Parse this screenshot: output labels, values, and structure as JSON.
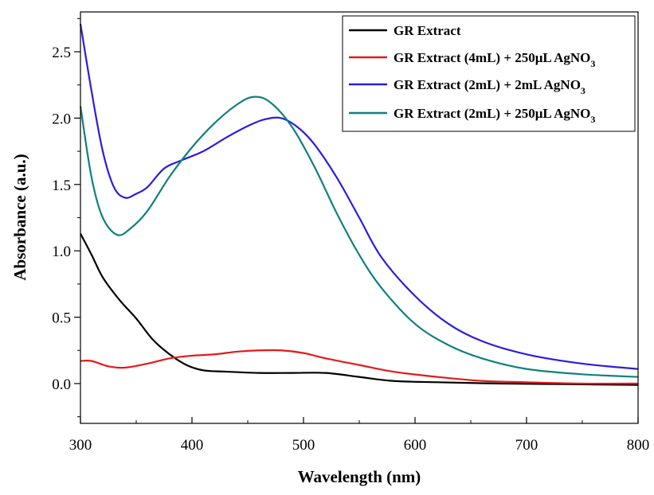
{
  "chart_data": {
    "type": "line",
    "xlabel": "Wavelength (nm)",
    "ylabel": "Absorbance (a.u.)",
    "xlim": [
      300,
      800
    ],
    "ylim": [
      -0.3,
      2.8
    ],
    "xticks": [
      300,
      400,
      500,
      600,
      700,
      800
    ],
    "xtick_labels": [
      "300",
      "400",
      "500",
      "600",
      "700",
      "800"
    ],
    "yticks": [
      0.0,
      0.5,
      1.0,
      1.5,
      2.0,
      2.5
    ],
    "ytick_labels": [
      "0.0",
      "0.5",
      "1.0",
      "1.5",
      "2.0",
      "2.5"
    ],
    "grid": false,
    "legend_position": "top-right",
    "series": [
      {
        "name": "GR Extract",
        "color": "#000000",
        "legend_main": "GR Extract",
        "legend_sub": "",
        "points": [
          [
            300,
            1.13
          ],
          [
            310,
            0.97
          ],
          [
            320,
            0.8
          ],
          [
            335,
            0.63
          ],
          [
            350,
            0.49
          ],
          [
            365,
            0.33
          ],
          [
            380,
            0.22
          ],
          [
            395,
            0.14
          ],
          [
            410,
            0.1
          ],
          [
            430,
            0.09
          ],
          [
            460,
            0.08
          ],
          [
            490,
            0.08
          ],
          [
            520,
            0.08
          ],
          [
            550,
            0.05
          ],
          [
            580,
            0.02
          ],
          [
            620,
            0.01
          ],
          [
            680,
            0.0
          ],
          [
            740,
            -0.005
          ],
          [
            800,
            -0.01
          ]
        ]
      },
      {
        "name": "GR Extract (4mL) + 250μL AgNO3",
        "color": "#e31a1c",
        "legend_main": "GR Extract (4mL) + 250μL AgNO",
        "legend_sub": "3",
        "points": [
          [
            300,
            0.17
          ],
          [
            310,
            0.17
          ],
          [
            325,
            0.13
          ],
          [
            340,
            0.12
          ],
          [
            360,
            0.15
          ],
          [
            380,
            0.19
          ],
          [
            400,
            0.21
          ],
          [
            420,
            0.22
          ],
          [
            440,
            0.24
          ],
          [
            460,
            0.25
          ],
          [
            480,
            0.25
          ],
          [
            500,
            0.23
          ],
          [
            520,
            0.19
          ],
          [
            550,
            0.14
          ],
          [
            580,
            0.09
          ],
          [
            620,
            0.05
          ],
          [
            660,
            0.02
          ],
          [
            700,
            0.01
          ],
          [
            750,
            0.0
          ],
          [
            800,
            0.0
          ]
        ]
      },
      {
        "name": "GR Extract (2mL) + 2mL AgNO3",
        "color": "#2b1de0",
        "legend_main": "GR Extract (2mL) + 2mL AgNO",
        "legend_sub": "3",
        "points": [
          [
            300,
            2.71
          ],
          [
            310,
            2.2
          ],
          [
            320,
            1.75
          ],
          [
            330,
            1.48
          ],
          [
            340,
            1.4
          ],
          [
            350,
            1.43
          ],
          [
            360,
            1.48
          ],
          [
            375,
            1.62
          ],
          [
            390,
            1.68
          ],
          [
            410,
            1.75
          ],
          [
            430,
            1.85
          ],
          [
            450,
            1.94
          ],
          [
            465,
            1.99
          ],
          [
            480,
            2.0
          ],
          [
            495,
            1.93
          ],
          [
            510,
            1.8
          ],
          [
            530,
            1.55
          ],
          [
            550,
            1.25
          ],
          [
            570,
            0.95
          ],
          [
            600,
            0.66
          ],
          [
            630,
            0.45
          ],
          [
            660,
            0.32
          ],
          [
            700,
            0.22
          ],
          [
            750,
            0.15
          ],
          [
            800,
            0.11
          ]
        ]
      },
      {
        "name": "GR Extract (2mL) + 250μL AgNO3",
        "color": "#10807d",
        "legend_main": "GR Extract (2mL) + 250μL AgNO",
        "legend_sub": "3",
        "points": [
          [
            300,
            2.09
          ],
          [
            310,
            1.55
          ],
          [
            320,
            1.25
          ],
          [
            333,
            1.12
          ],
          [
            345,
            1.17
          ],
          [
            360,
            1.3
          ],
          [
            380,
            1.56
          ],
          [
            400,
            1.78
          ],
          [
            420,
            1.96
          ],
          [
            440,
            2.1
          ],
          [
            455,
            2.16
          ],
          [
            470,
            2.12
          ],
          [
            490,
            1.93
          ],
          [
            510,
            1.63
          ],
          [
            530,
            1.28
          ],
          [
            550,
            0.97
          ],
          [
            570,
            0.72
          ],
          [
            600,
            0.45
          ],
          [
            630,
            0.29
          ],
          [
            660,
            0.19
          ],
          [
            700,
            0.11
          ],
          [
            750,
            0.07
          ],
          [
            800,
            0.05
          ]
        ]
      }
    ]
  }
}
